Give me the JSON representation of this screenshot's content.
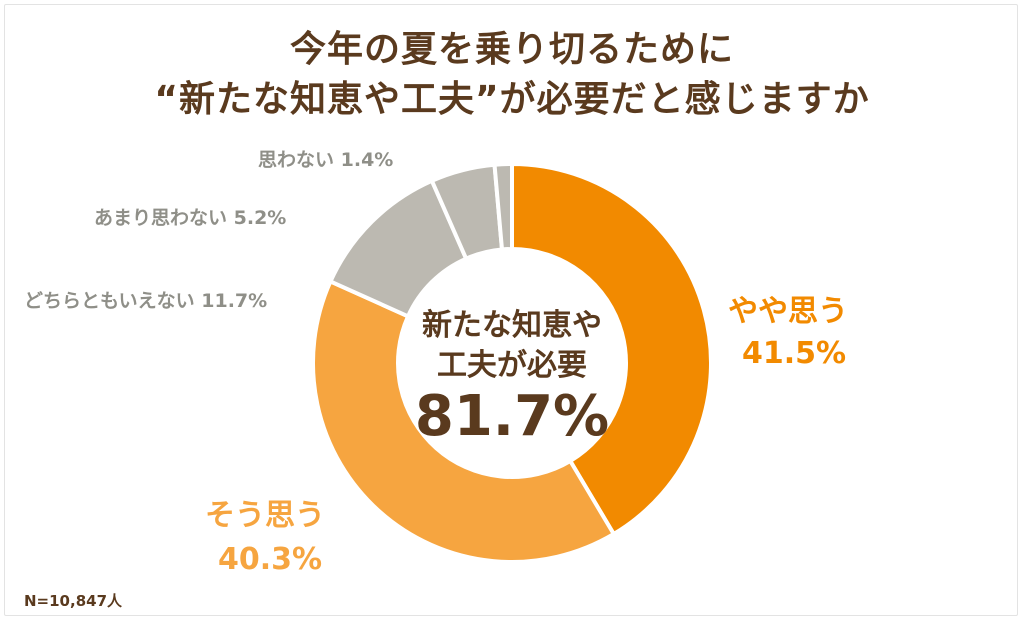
{
  "title_line1": "今年の夏を乗り切るために",
  "title_line2": "“新たな知恵や工夫”が必要だと感じますか",
  "center_label_line1": "新たな知恵や",
  "center_label_line2": "工夫が必要",
  "center_value": "81.7%",
  "sample_size": "N=10,847人",
  "chart_data": {
    "type": "pie",
    "variant": "donut",
    "categories": [
      "やや思う",
      "そう思う",
      "どちらともいえない",
      "あまり思わない",
      "思わない"
    ],
    "values": [
      41.5,
      40.3,
      11.7,
      5.2,
      1.4
    ],
    "value_labels": [
      "41.5%",
      "40.3%",
      "11.7%",
      "5.2%",
      "1.4%"
    ],
    "colors": [
      "#f28a00",
      "#f6a540",
      "#bcb9b1",
      "#bcb9b1",
      "#bcb9b1"
    ],
    "start": "top",
    "direction": "clockwise"
  }
}
